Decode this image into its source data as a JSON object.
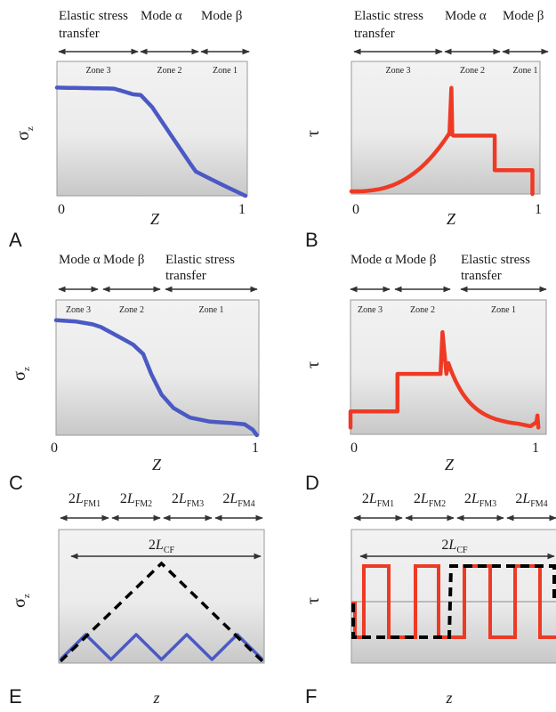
{
  "panels": [
    {
      "id": "A",
      "letter": "A",
      "header": [
        {
          "lines": [
            "Elastic stress",
            "transfer"
          ]
        },
        {
          "lines": [
            "Mode α"
          ]
        },
        {
          "lines": [
            "Mode β"
          ]
        }
      ],
      "zones": [
        "Zone 3",
        "Zone 2",
        "Zone 1"
      ],
      "y_label": "σ",
      "y_sub": "z",
      "x_label": "Z",
      "ticks": [
        "0",
        "1"
      ],
      "colors": {
        "curve": "#4b59c4"
      }
    },
    {
      "id": "B",
      "letter": "B",
      "header": [
        {
          "lines": [
            "Elastic stress",
            "transfer"
          ]
        },
        {
          "lines": [
            "Mode α"
          ]
        },
        {
          "lines": [
            "Mode β"
          ]
        }
      ],
      "zones": [
        "Zone 3",
        "Zone 2",
        "Zone 1"
      ],
      "y_label": "τ",
      "x_label": "Z",
      "ticks": [
        "0",
        "1"
      ],
      "colors": {
        "curve": "#ee3a25"
      }
    },
    {
      "id": "C",
      "letter": "C",
      "header": [
        {
          "lines": [
            "Mode α"
          ]
        },
        {
          "lines": [
            "Mode β"
          ]
        },
        {
          "lines": [
            "Elastic stress",
            "transfer"
          ]
        }
      ],
      "zones": [
        "Zone 3",
        "Zone 2",
        "Zone 1"
      ],
      "y_label": "σ",
      "y_sub": "z",
      "x_label": "Z",
      "ticks": [
        "0",
        "1"
      ],
      "colors": {
        "curve": "#4b59c4"
      }
    },
    {
      "id": "D",
      "letter": "D",
      "header": [
        {
          "lines": [
            "Mode α"
          ]
        },
        {
          "lines": [
            "Mode β"
          ]
        },
        {
          "lines": [
            "Elastic stress",
            "transfer"
          ]
        }
      ],
      "zones": [
        "Zone 3",
        "Zone 2",
        "Zone 1"
      ],
      "y_label": "τ",
      "x_label": "Z",
      "ticks": [
        "0",
        "1"
      ],
      "colors": {
        "curve": "#ee3a25"
      }
    },
    {
      "id": "E",
      "letter": "E",
      "fm_label": "2L",
      "fm_subs": [
        "FM1",
        "FM2",
        "FM3",
        "FM4"
      ],
      "cf_label": "2L",
      "cf_sub": "CF",
      "y_label": "σ",
      "y_sub": "z",
      "x_label": "z",
      "colors": {
        "curve": "#4b59c4",
        "dashed": "#000000"
      }
    },
    {
      "id": "F",
      "letter": "F",
      "fm_label": "2L",
      "fm_subs": [
        "FM1",
        "FM2",
        "FM3",
        "FM4"
      ],
      "cf_label": "2L",
      "cf_sub": "CF",
      "y_label": "τ",
      "x_label": "z",
      "colors": {
        "curve": "#ee3a25",
        "dashed": "#000000"
      }
    }
  ]
}
